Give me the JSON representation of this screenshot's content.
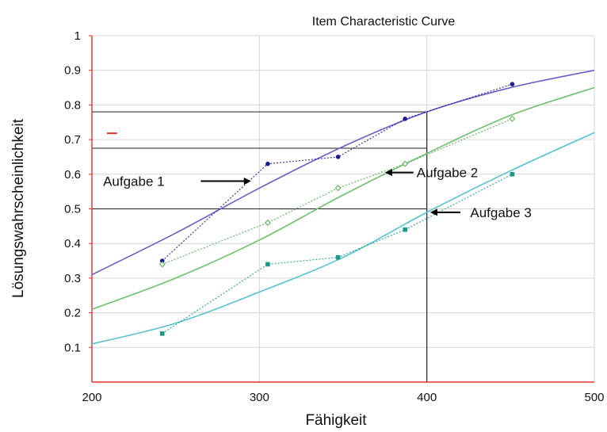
{
  "chart_data": {
    "type": "line",
    "title": "Item Characteristic Curve",
    "xlabel": "Fähigkeit",
    "ylabel": "Lösungswahrscheinlichkeit",
    "xlim": [
      200,
      500
    ],
    "ylim": [
      0,
      1
    ],
    "x_ticks": [
      "200",
      "300",
      "400",
      "500"
    ],
    "y_ticks": [
      "0.1",
      "0.2",
      "0.3",
      "0.4",
      "0.5",
      "0.6",
      "0.7",
      "0.8",
      "0.9",
      "1"
    ],
    "grid": true,
    "legend": "none",
    "series": [
      {
        "kind": "fitted-curve",
        "color": "#6b5fc7",
        "x": [
          200,
          250,
          300,
          350,
          400,
          450,
          500
        ],
        "values": [
          0.31,
          0.43,
          0.56,
          0.68,
          0.78,
          0.85,
          0.9
        ]
      },
      {
        "kind": "fitted-curve",
        "color": "#6cc06c",
        "x": [
          200,
          250,
          300,
          350,
          400,
          450,
          500
        ],
        "values": [
          0.21,
          0.3,
          0.41,
          0.54,
          0.66,
          0.77,
          0.85
        ]
      },
      {
        "kind": "fitted-curve",
        "color": "#56c2cc",
        "x": [
          200,
          250,
          300,
          350,
          400,
          450,
          500
        ],
        "values": [
          0.11,
          0.17,
          0.26,
          0.36,
          0.49,
          0.61,
          0.72
        ]
      },
      {
        "kind": "observed-points",
        "color": "#1a1a8c",
        "marker": "dot",
        "x": [
          242,
          305,
          347,
          387,
          451
        ],
        "values": [
          0.35,
          0.63,
          0.65,
          0.76,
          0.86
        ]
      },
      {
        "kind": "observed-points",
        "color": "#4caa4c",
        "marker": "diamond",
        "x": [
          242,
          305,
          347,
          387,
          451
        ],
        "values": [
          0.34,
          0.46,
          0.56,
          0.63,
          0.76
        ]
      },
      {
        "kind": "observed-points",
        "color": "#1a9a8a",
        "marker": "square",
        "x": [
          242,
          305,
          347,
          387,
          451
        ],
        "values": [
          0.14,
          0.34,
          0.36,
          0.44,
          0.6
        ]
      }
    ],
    "reference_lines": [
      {
        "y": 0.78,
        "x_end": 400
      },
      {
        "y": 0.675,
        "x_end": 400
      },
      {
        "y": 0.5,
        "x_end": 400
      },
      {
        "x": 400,
        "y_end": 0.78
      }
    ],
    "annotations": [
      {
        "text": "Aufgabe 1",
        "x": 225,
        "y": 0.58,
        "arrow_from": 265,
        "arrow_to": 295
      },
      {
        "text": "Aufgabe 2",
        "x": 392,
        "y": 0.605,
        "arrow_from": 392,
        "arrow_to": 375
      },
      {
        "text": "Aufgabe 3",
        "x": 424,
        "y": 0.49,
        "arrow_from": 420,
        "arrow_to": 402
      }
    ]
  }
}
